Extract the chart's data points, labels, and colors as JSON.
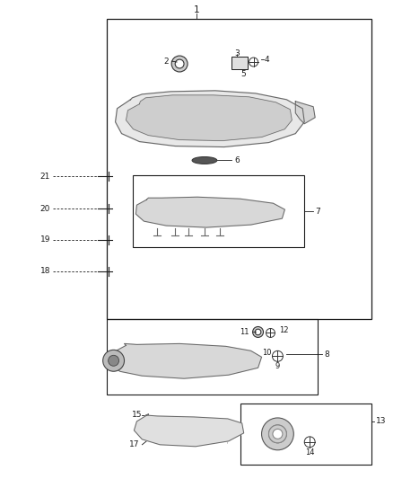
{
  "bg_color": "#ffffff",
  "fig_width": 4.38,
  "fig_height": 5.33,
  "dpi": 100,
  "black": "#1a1a1a",
  "gray": "#666666",
  "light_gray": "#d0d0d0",
  "med_gray": "#999999"
}
